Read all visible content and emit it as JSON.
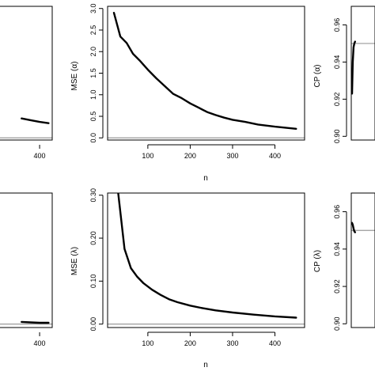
{
  "chart_data": [
    {
      "id": "mse-alpha-partial",
      "type": "line",
      "xlabel": "",
      "ylabel": "",
      "x_ticks": [
        "400"
      ],
      "y_ticks": [],
      "x": [
        300,
        350,
        400,
        450
      ],
      "values": [
        0.45,
        0.41,
        0.37,
        0.34
      ],
      "reference_y": 0.0,
      "xlim": [
        180,
        470
      ],
      "ylim": [
        -0.05,
        3.05
      ]
    },
    {
      "id": "mse-alpha",
      "type": "line",
      "xlabel": "n",
      "ylabel": "MSE (α)",
      "x_ticks": [
        "100",
        "200",
        "300",
        "400"
      ],
      "y_ticks": [
        "0.0",
        "0.5",
        "1.0",
        "1.5",
        "2.0",
        "2.5",
        "3.0"
      ],
      "x": [
        20,
        35,
        50,
        65,
        80,
        100,
        120,
        140,
        160,
        180,
        200,
        220,
        240,
        260,
        280,
        300,
        330,
        360,
        400,
        450
      ],
      "values": [
        2.9,
        2.35,
        2.2,
        1.95,
        1.8,
        1.58,
        1.38,
        1.2,
        1.02,
        0.92,
        0.8,
        0.7,
        0.6,
        0.53,
        0.47,
        0.42,
        0.37,
        0.31,
        0.26,
        0.21
      ],
      "reference_y": 0.0,
      "xlim": [
        5,
        470
      ],
      "ylim": [
        -0.05,
        3.05
      ]
    },
    {
      "id": "cp-alpha",
      "type": "line",
      "xlabel": "",
      "ylabel": "CP (α)",
      "x_ticks": [],
      "y_ticks": [
        "0.90",
        "0.92",
        "0.94",
        "0.96"
      ],
      "x": [
        20,
        35,
        50,
        65,
        80
      ],
      "values": [
        0.923,
        0.94,
        0.948,
        0.95,
        0.951
      ],
      "reference_y": 0.95,
      "xlim": [
        5,
        470
      ],
      "ylim": [
        0.898,
        0.97
      ]
    },
    {
      "id": "mse-lambda-partial",
      "type": "line",
      "xlabel": "",
      "ylabel": "",
      "x_ticks": [
        "400"
      ],
      "y_ticks": [],
      "x": [
        300,
        350,
        400,
        450
      ],
      "values": [
        0.005,
        0.004,
        0.003,
        0.003
      ],
      "reference_y": 0.0,
      "xlim": [
        180,
        470
      ],
      "ylim": [
        -0.008,
        0.305
      ]
    },
    {
      "id": "mse-lambda",
      "type": "line",
      "xlabel": "n",
      "ylabel": "MSE (λ)",
      "x_ticks": [
        "100",
        "200",
        "300",
        "400"
      ],
      "y_ticks": [
        "0.00",
        "0.10",
        "0.20",
        "0.30"
      ],
      "x": [
        30,
        45,
        60,
        75,
        90,
        110,
        130,
        150,
        170,
        200,
        230,
        260,
        300,
        350,
        400,
        450
      ],
      "values": [
        0.305,
        0.175,
        0.13,
        0.11,
        0.095,
        0.08,
        0.068,
        0.058,
        0.051,
        0.043,
        0.037,
        0.032,
        0.027,
        0.022,
        0.018,
        0.015
      ],
      "reference_y": 0.0,
      "xlim": [
        5,
        470
      ],
      "ylim": [
        -0.008,
        0.305
      ]
    },
    {
      "id": "cp-lambda",
      "type": "line",
      "xlabel": "",
      "ylabel": "CP (λ)",
      "x_ticks": [],
      "y_ticks": [
        "0.90",
        "0.92",
        "0.94",
        "0.96"
      ],
      "x": [
        20,
        35,
        50,
        65,
        80
      ],
      "values": [
        0.954,
        0.953,
        0.951,
        0.9495,
        0.949
      ],
      "reference_y": 0.95,
      "xlim": [
        5,
        470
      ],
      "ylim": [
        0.898,
        0.97
      ]
    }
  ]
}
